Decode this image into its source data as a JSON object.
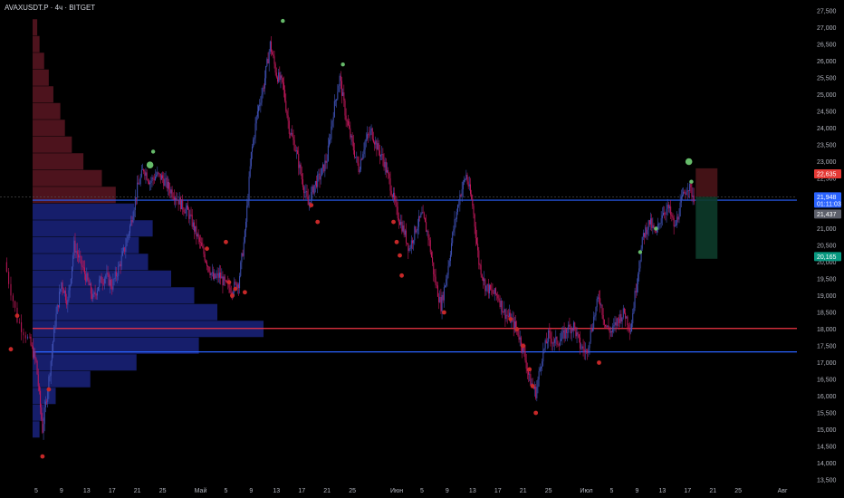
{
  "header": {
    "title": "AVAXUSDT.P · 4ч · BITGET"
  },
  "colors": {
    "background": "#000000",
    "candle": "#3f51b5",
    "candle_down": "#c2185b",
    "dot_red": "#c62828",
    "dot_green": "#66bb6a",
    "line_blue": "#2962ff",
    "line_red": "#f23645",
    "vp_red": "#5a1622",
    "vp_blue": "#1a237e",
    "badge_red": "#e53935",
    "badge_blue": "#2962ff",
    "badge_green": "#089981",
    "badge_grey": "#5d606b"
  },
  "chart_data": {
    "type": "candlestick",
    "symbol": "AVAXUSDT.P",
    "timeframe": "4ч",
    "exchange": "BITGET",
    "y_axis": {
      "ticks": [
        "27,500",
        "27,000",
        "26,500",
        "26,000",
        "25,500",
        "25,000",
        "24,500",
        "24,000",
        "23,500",
        "23,000",
        "22,500",
        "22,000",
        "21,500",
        "21,000",
        "20,500",
        "20,000",
        "19,500",
        "19,000",
        "18,500",
        "18,000",
        "17,500",
        "17,000",
        "16,500",
        "16,000",
        "15,500",
        "15,000",
        "14,500",
        "14,000",
        "13,500"
      ],
      "ylim": [
        13.5,
        27.5
      ]
    },
    "x_axis": {
      "ticks": [
        {
          "label": "5",
          "day": 5
        },
        {
          "label": "9",
          "day": 9
        },
        {
          "label": "13",
          "day": 13
        },
        {
          "label": "17",
          "day": 17
        },
        {
          "label": "21",
          "day": 21
        },
        {
          "label": "25",
          "day": 25
        },
        {
          "label": "Май",
          "day": 31
        },
        {
          "label": "5",
          "day": 35
        },
        {
          "label": "9",
          "day": 39
        },
        {
          "label": "13",
          "day": 43
        },
        {
          "label": "17",
          "day": 47
        },
        {
          "label": "21",
          "day": 51
        },
        {
          "label": "25",
          "day": 55
        },
        {
          "label": "Июн",
          "day": 62
        },
        {
          "label": "5",
          "day": 66
        },
        {
          "label": "9",
          "day": 70
        },
        {
          "label": "13",
          "day": 74
        },
        {
          "label": "17",
          "day": 78
        },
        {
          "label": "21",
          "day": 82
        },
        {
          "label": "25",
          "day": 86
        },
        {
          "label": "Июл",
          "day": 92
        },
        {
          "label": "5",
          "day": 96
        },
        {
          "label": "9",
          "day": 100
        },
        {
          "label": "13",
          "day": 104
        },
        {
          "label": "17",
          "day": 108
        },
        {
          "label": "21",
          "day": 112
        },
        {
          "label": "25",
          "day": 116
        },
        {
          "label": "Авг",
          "day": 123
        }
      ],
      "xlim": [
        0,
        126
      ],
      "last_day": 109
    },
    "price_path": [
      [
        0,
        20.0
      ],
      [
        2,
        18.3
      ],
      [
        4,
        17.6
      ],
      [
        5,
        17.0
      ],
      [
        6,
        15.0
      ],
      [
        7,
        16.5
      ],
      [
        8,
        18.2
      ],
      [
        9,
        19.4
      ],
      [
        10,
        18.8
      ],
      [
        11,
        20.5
      ],
      [
        12,
        20.0
      ],
      [
        13,
        19.5
      ],
      [
        14,
        18.9
      ],
      [
        15,
        19.4
      ],
      [
        16,
        19.6
      ],
      [
        17,
        19.3
      ],
      [
        18,
        19.8
      ],
      [
        19,
        20.4
      ],
      [
        20,
        21.2
      ],
      [
        21,
        22.2
      ],
      [
        22,
        22.8
      ],
      [
        23,
        22.4
      ],
      [
        24,
        22.6
      ],
      [
        25,
        22.5
      ],
      [
        26,
        22.2
      ],
      [
        27,
        22.0
      ],
      [
        28,
        21.7
      ],
      [
        29,
        21.5
      ],
      [
        30,
        21.0
      ],
      [
        31,
        20.5
      ],
      [
        32,
        20.0
      ],
      [
        33,
        19.5
      ],
      [
        34,
        19.6
      ],
      [
        35,
        19.3
      ],
      [
        36,
        19.2
      ],
      [
        37,
        19.4
      ],
      [
        38,
        20.8
      ],
      [
        39,
        23.2
      ],
      [
        40,
        24.5
      ],
      [
        41,
        25.3
      ],
      [
        42,
        26.5
      ],
      [
        43,
        25.6
      ],
      [
        44,
        25.3
      ],
      [
        45,
        24.0
      ],
      [
        46,
        23.4
      ],
      [
        47,
        22.5
      ],
      [
        48,
        21.7
      ],
      [
        49,
        22.3
      ],
      [
        50,
        22.6
      ],
      [
        51,
        23.1
      ],
      [
        52,
        24.5
      ],
      [
        53,
        25.5
      ],
      [
        54,
        24.3
      ],
      [
        55,
        23.5
      ],
      [
        56,
        22.8
      ],
      [
        57,
        23.6
      ],
      [
        58,
        23.9
      ],
      [
        59,
        23.4
      ],
      [
        60,
        23.0
      ],
      [
        61,
        22.3
      ],
      [
        62,
        21.5
      ],
      [
        63,
        21.0
      ],
      [
        64,
        20.4
      ],
      [
        65,
        21.0
      ],
      [
        66,
        21.4
      ],
      [
        67,
        20.8
      ],
      [
        68,
        19.5
      ],
      [
        69,
        18.7
      ],
      [
        70,
        19.7
      ],
      [
        71,
        21.0
      ],
      [
        72,
        22.0
      ],
      [
        73,
        22.6
      ],
      [
        74,
        21.7
      ],
      [
        75,
        20.0
      ],
      [
        76,
        19.3
      ],
      [
        77,
        19.1
      ],
      [
        78,
        19.0
      ],
      [
        79,
        18.5
      ],
      [
        80,
        18.3
      ],
      [
        81,
        18.0
      ],
      [
        82,
        17.4
      ],
      [
        83,
        16.5
      ],
      [
        84,
        16.1
      ],
      [
        85,
        17.2
      ],
      [
        86,
        17.8
      ],
      [
        87,
        17.6
      ],
      [
        88,
        17.7
      ],
      [
        89,
        18.0
      ],
      [
        90,
        18.1
      ],
      [
        91,
        17.5
      ],
      [
        92,
        17.3
      ],
      [
        93,
        18.2
      ],
      [
        94,
        19.0
      ],
      [
        95,
        18.1
      ],
      [
        96,
        17.9
      ],
      [
        97,
        18.3
      ],
      [
        98,
        18.5
      ],
      [
        99,
        18.0
      ],
      [
        100,
        19.5
      ],
      [
        101,
        20.8
      ],
      [
        102,
        21.2
      ],
      [
        103,
        20.8
      ],
      [
        104,
        21.5
      ],
      [
        105,
        21.6
      ],
      [
        106,
        21.0
      ],
      [
        107,
        21.8
      ],
      [
        108,
        22.3
      ],
      [
        109,
        21.95
      ]
    ],
    "horizontal_lines": [
      {
        "price": 21.85,
        "color": "blue"
      },
      {
        "price": 18.02,
        "color": "red"
      },
      {
        "price": 17.32,
        "color": "blue"
      }
    ],
    "price_badges": [
      {
        "price": 22.635,
        "label": "22,635",
        "color": "red"
      },
      {
        "price": 21.948,
        "label": "21,948",
        "sublabel": "01:11:03",
        "color": "blue"
      },
      {
        "price": 21.437,
        "label": "21,437",
        "color": "grey"
      },
      {
        "price": 20.165,
        "label": "20,165",
        "color": "green"
      }
    ],
    "position_box": {
      "entry": 21.95,
      "stop": 22.8,
      "target": 20.1
    },
    "volume_profile": {
      "poc_price": 18.1,
      "bins": [
        [
          27.0,
          0.02
        ],
        [
          26.5,
          0.03
        ],
        [
          26.0,
          0.05
        ],
        [
          25.5,
          0.07
        ],
        [
          25.0,
          0.09
        ],
        [
          24.5,
          0.12
        ],
        [
          24.0,
          0.14
        ],
        [
          23.5,
          0.17
        ],
        [
          23.0,
          0.22
        ],
        [
          22.5,
          0.3
        ],
        [
          22.0,
          0.36
        ],
        [
          21.5,
          0.44
        ],
        [
          21.0,
          0.52
        ],
        [
          20.5,
          0.46
        ],
        [
          20.0,
          0.5
        ],
        [
          19.5,
          0.6
        ],
        [
          19.0,
          0.7
        ],
        [
          18.5,
          0.8
        ],
        [
          18.0,
          1.0
        ],
        [
          17.5,
          0.72
        ],
        [
          17.0,
          0.45
        ],
        [
          16.5,
          0.25
        ],
        [
          16.0,
          0.1
        ],
        [
          15.5,
          0.05
        ],
        [
          15.0,
          0.03
        ]
      ]
    },
    "green_dots": [
      [
        23,
        22.9
      ],
      [
        23.5,
        23.3
      ],
      [
        44,
        27.2
      ],
      [
        53.5,
        25.9
      ],
      [
        100.5,
        20.3
      ],
      [
        103,
        21.0
      ],
      [
        108.2,
        23.0
      ],
      [
        108.6,
        22.4
      ]
    ],
    "red_dots": [
      [
        1,
        17.4
      ],
      [
        2,
        18.4
      ],
      [
        6,
        14.2
      ],
      [
        7,
        16.2
      ],
      [
        32,
        20.4
      ],
      [
        35,
        20.6
      ],
      [
        35.5,
        19.4
      ],
      [
        36,
        19.0
      ],
      [
        36.5,
        19.2
      ],
      [
        38,
        19.1
      ],
      [
        48.5,
        21.7
      ],
      [
        49.5,
        21.2
      ],
      [
        61.5,
        21.2
      ],
      [
        62,
        20.6
      ],
      [
        62.5,
        20.2
      ],
      [
        62.8,
        19.6
      ],
      [
        69.5,
        18.5
      ],
      [
        80,
        18.3
      ],
      [
        81,
        18.0
      ],
      [
        82,
        17.5
      ],
      [
        83,
        16.8
      ],
      [
        83.5,
        16.3
      ],
      [
        84,
        15.5
      ],
      [
        94,
        17.0
      ]
    ]
  }
}
